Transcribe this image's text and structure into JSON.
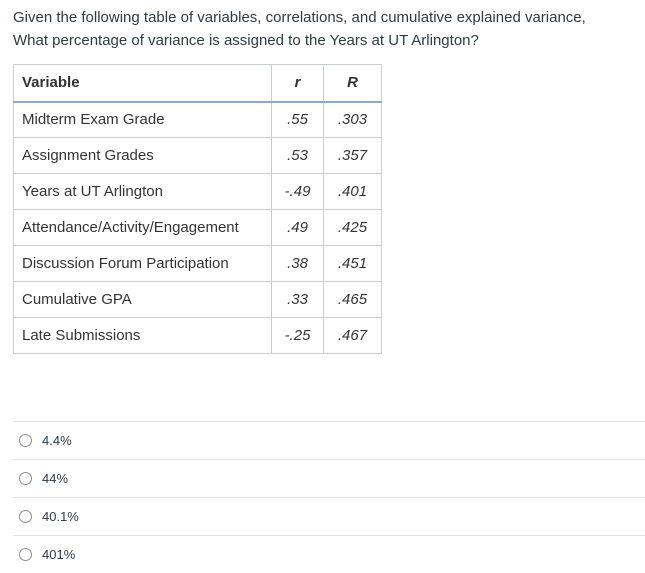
{
  "question": {
    "line1": "Given the following table of variables, correlations, and cumulative explained variance,",
    "line2": "What percentage of variance is assigned to the Years at UT Arlington?"
  },
  "table": {
    "headers": {
      "variable": "Variable",
      "r": "r",
      "R": "R"
    },
    "rows": [
      {
        "variable": "Midterm Exam Grade",
        "r": ".55",
        "R": ".303"
      },
      {
        "variable": "Assignment Grades",
        "r": ".53",
        "R": ".357"
      },
      {
        "variable": "Years at UT Arlington",
        "r": "-.49",
        "R": ".401"
      },
      {
        "variable": "Attendance/Activity/Engagement",
        "r": ".49",
        "R": ".425"
      },
      {
        "variable": "Discussion Forum Participation",
        "r": ".38",
        "R": ".451"
      },
      {
        "variable": "Cumulative GPA",
        "r": ".33",
        "R": ".465"
      },
      {
        "variable": "Late Submissions",
        "r": "-.25",
        "R": ".467"
      }
    ]
  },
  "answers": [
    {
      "label": "4.4%"
    },
    {
      "label": "44%"
    },
    {
      "label": "40.1%"
    },
    {
      "label": "401%"
    }
  ],
  "colors": {
    "text": "#2d3b45",
    "table_border": "#c7cdd1",
    "header_underline": "#8fa7c4",
    "divider": "#e0e3e6"
  }
}
